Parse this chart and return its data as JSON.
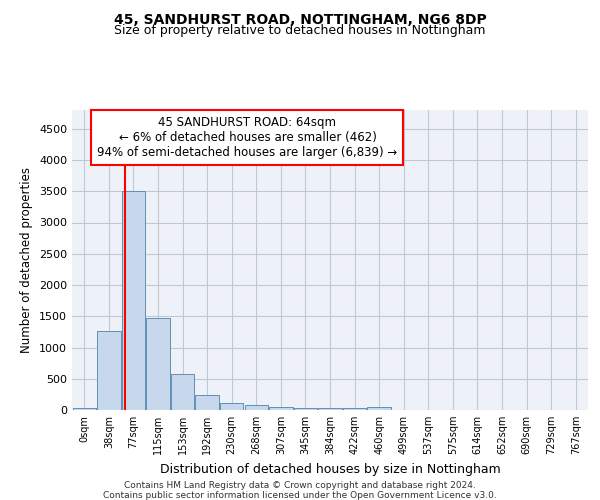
{
  "title1": "45, SANDHURST ROAD, NOTTINGHAM, NG6 8DP",
  "title2": "Size of property relative to detached houses in Nottingham",
  "xlabel": "Distribution of detached houses by size in Nottingham",
  "ylabel": "Number of detached properties",
  "bar_labels": [
    "0sqm",
    "38sqm",
    "77sqm",
    "115sqm",
    "153sqm",
    "192sqm",
    "230sqm",
    "268sqm",
    "307sqm",
    "345sqm",
    "384sqm",
    "422sqm",
    "460sqm",
    "499sqm",
    "537sqm",
    "575sqm",
    "614sqm",
    "652sqm",
    "690sqm",
    "729sqm",
    "767sqm"
  ],
  "bar_values": [
    40,
    1270,
    3500,
    1480,
    570,
    240,
    115,
    80,
    55,
    40,
    30,
    25,
    55,
    0,
    0,
    0,
    0,
    0,
    0,
    0,
    0
  ],
  "bar_color": "#c8d8ec",
  "bar_edge_color": "#6090b8",
  "annotation_box_text": "45 SANDHURST ROAD: 64sqm\n← 6% of detached houses are smaller (462)\n94% of semi-detached houses are larger (6,839) →",
  "ylim": [
    0,
    4800
  ],
  "yticks": [
    0,
    500,
    1000,
    1500,
    2000,
    2500,
    3000,
    3500,
    4000,
    4500
  ],
  "footer1": "Contains HM Land Registry data © Crown copyright and database right 2024.",
  "footer2": "Contains public sector information licensed under the Open Government Licence v3.0.",
  "bg_color": "#eef2f8",
  "grid_color": "#c0c8d4"
}
